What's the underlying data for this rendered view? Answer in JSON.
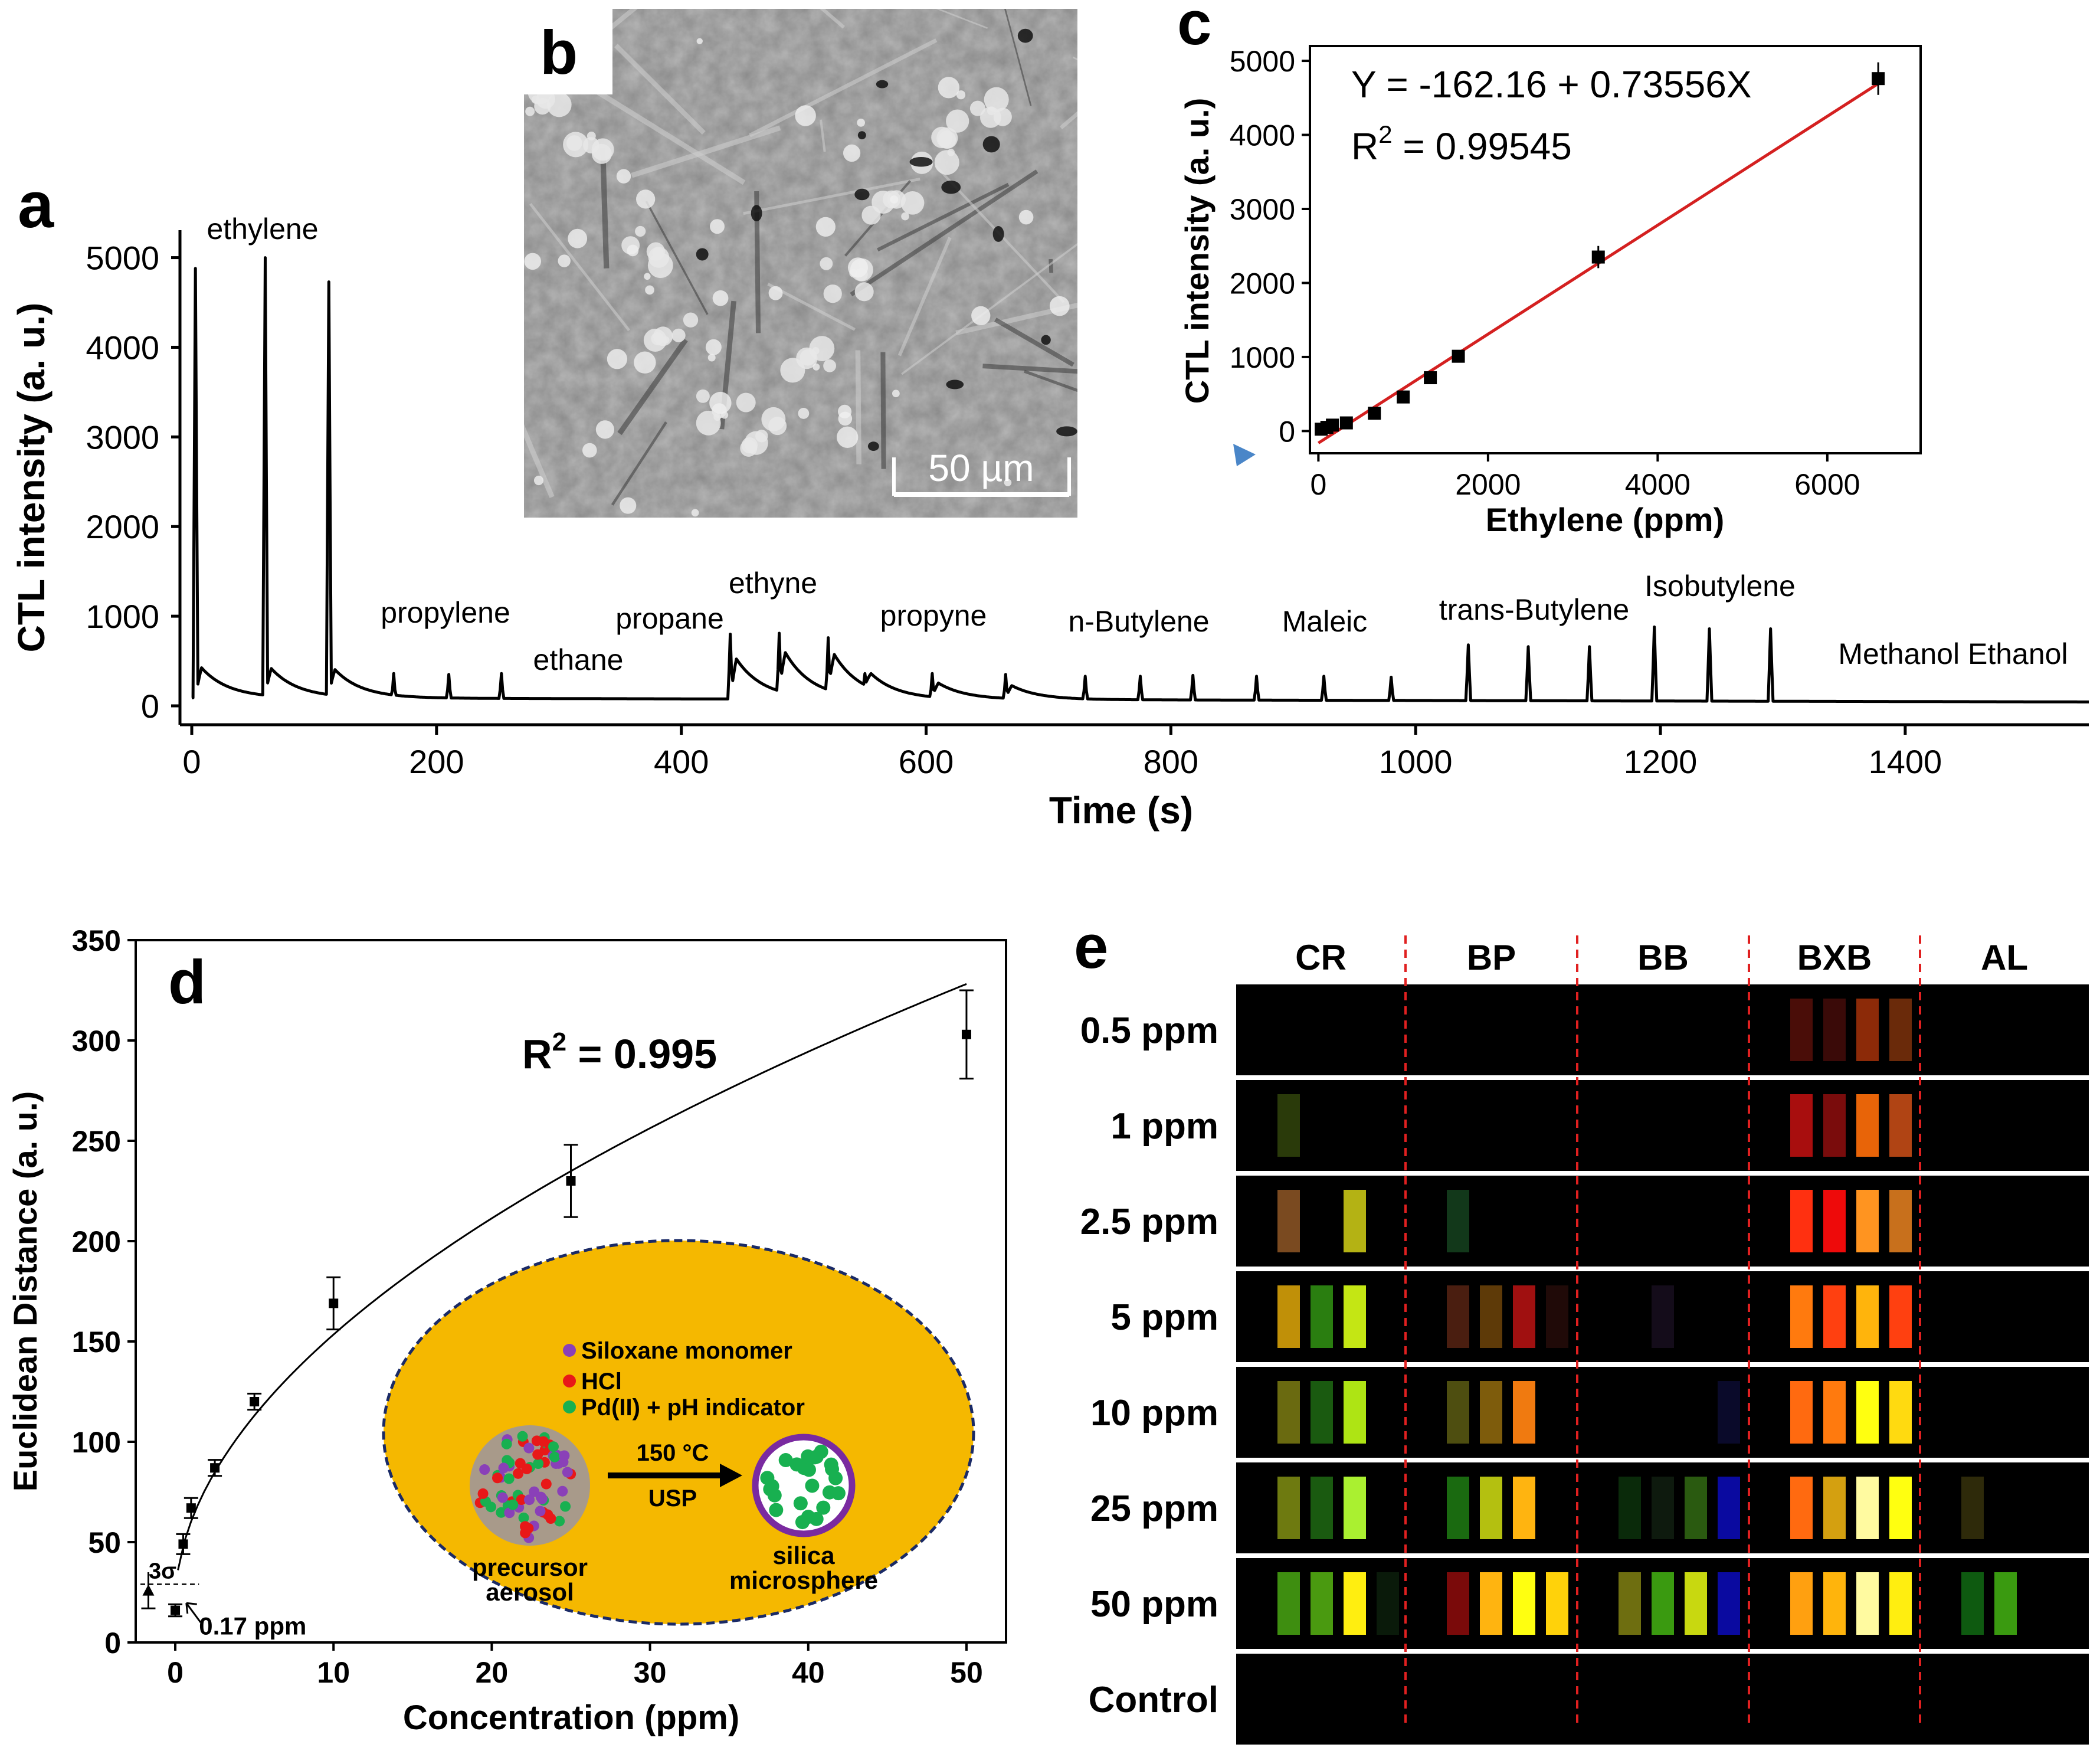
{
  "panel_labels": {
    "a": "a",
    "b": "b",
    "c": "c",
    "d": "d",
    "e": "e"
  },
  "panel_a": {
    "ylabel": "CTL intensity (a. u.)",
    "xlabel": "Time (s)",
    "yticks": [
      "0",
      "1000",
      "2000",
      "3000",
      "4000",
      "5000"
    ],
    "xticks": [
      "0",
      "200",
      "400",
      "600",
      "800",
      "1000",
      "1200",
      "1400"
    ],
    "annotations": [
      "ethylene",
      "propylene",
      "ethane",
      "propane",
      "ethyne",
      "propyne",
      "n-Butylene",
      "Maleic",
      "trans-Butylene",
      "Isobutylene",
      "Methanol Ethanol"
    ]
  },
  "panel_b": {
    "scale_bar": "50 µm"
  },
  "panel_c": {
    "equation": "Y = -162.16 + 0.73556X",
    "r2_prefix": "R",
    "r2_sup": "2",
    "r2_value": " = 0.99545",
    "ylabel": "CTL intensity (a. u.)",
    "xlabel": "Ethylene (ppm)",
    "yticks": [
      "0",
      "1000",
      "2000",
      "3000",
      "4000",
      "5000"
    ],
    "xticks": [
      "0",
      "2000",
      "4000",
      "6000"
    ]
  },
  "panel_d": {
    "r2_prefix": "R",
    "r2_sup": "2",
    "r2_value": " = 0.995",
    "ylabel": "Euclidean Distance (a. u.)",
    "xlabel": "Concentration (ppm)",
    "yticks": [
      "0",
      "50",
      "100",
      "150",
      "200",
      "250",
      "300",
      "350"
    ],
    "xticks": [
      "0",
      "10",
      "20",
      "30",
      "40",
      "50"
    ],
    "sigma_label": "3σ",
    "lod_label": "0.17 ppm",
    "inset": {
      "legend": [
        "Siloxane monomer",
        "HCl",
        "Pd(II) + pH indicator"
      ],
      "condition_top": "150 °C",
      "condition_bottom": "USP",
      "left_label_1": "precursor",
      "left_label_2": "aerosol",
      "right_label_1": "silica",
      "right_label_2": "microsphere"
    }
  },
  "panel_e": {
    "columns": [
      "CR",
      "BP",
      "BB",
      "BXB",
      "AL"
    ],
    "rows": [
      "0.5 ppm",
      "1 ppm",
      "2.5 ppm",
      "5 ppm",
      "10 ppm",
      "25 ppm",
      "50 ppm",
      "Control"
    ]
  },
  "colors": {
    "fit_line_c": "#d42020",
    "inset_fill": "#f5b800",
    "inset_border": "#1a2a66",
    "divider": "#e02020"
  },
  "chart_data": [
    {
      "type": "line",
      "panel": "a",
      "xlabel": "Time (s)",
      "ylabel": "CTL intensity (a. u.)",
      "xlim": [
        0,
        1550
      ],
      "ylim": [
        0,
        5300
      ],
      "series": [
        {
          "values": [
            [
              0,
              100
            ],
            [
              3,
              4880
            ],
            [
              8,
              520
            ],
            [
              58,
              100
            ],
            [
              60,
              5000
            ],
            [
              63,
              500
            ],
            [
              110,
              100
            ],
            [
              112,
              4730
            ],
            [
              115,
              480
            ],
            [
              165,
              380
            ],
            [
              210,
              360
            ],
            [
              253,
              370
            ],
            [
              440,
              800
            ],
            [
              480,
              810
            ],
            [
              520,
              760
            ],
            [
              550,
              360
            ],
            [
              605,
              380
            ],
            [
              665,
              360
            ],
            [
              730,
              330
            ],
            [
              775,
              330
            ],
            [
              818,
              340
            ],
            [
              870,
              340
            ],
            [
              925,
              340
            ],
            [
              980,
              330
            ],
            [
              1043,
              680
            ],
            [
              1092,
              660
            ],
            [
              1142,
              660
            ],
            [
              1195,
              880
            ],
            [
              1240,
              860
            ],
            [
              1290,
              860
            ],
            [
              1550,
              10
            ]
          ]
        }
      ]
    },
    {
      "type": "scatter",
      "panel": "c",
      "xlabel": "Ethylene (ppm)",
      "ylabel": "CTL intensity (a. u.)",
      "xlim": [
        -100,
        7100
      ],
      "ylim": [
        -300,
        5200
      ],
      "x": [
        33,
        100,
        165,
        330,
        660,
        1000,
        1320,
        1650,
        3300,
        6600
      ],
      "y": [
        25,
        50,
        80,
        110,
        240,
        460,
        720,
        1010,
        2350,
        4760
      ],
      "error": [
        20,
        20,
        20,
        25,
        40,
        50,
        60,
        60,
        150,
        220
      ],
      "fit": {
        "intercept": -162.16,
        "slope": 0.73556
      }
    },
    {
      "type": "scatter",
      "panel": "d",
      "xlabel": "Concentration (ppm)",
      "ylabel": "Euclidean Distance (a. u.)",
      "xlim": [
        -2.5,
        52.5
      ],
      "ylim": [
        0,
        350
      ],
      "x": [
        0,
        0.5,
        1,
        2.5,
        5,
        10,
        25,
        50
      ],
      "y": [
        16,
        49,
        67,
        87,
        120,
        169,
        230,
        303
      ],
      "error": [
        3,
        5,
        5,
        4,
        4,
        13,
        18,
        22
      ],
      "baseline": {
        "x": -1.7,
        "y": 26,
        "error": 9
      }
    },
    {
      "type": "heatmap",
      "panel": "e",
      "columns": [
        "CR",
        "BP",
        "BB",
        "BXB",
        "AL"
      ],
      "rows": [
        "0.5 ppm",
        "1 ppm",
        "2.5 ppm",
        "5 ppm",
        "10 ppm",
        "25 ppm",
        "50 ppm",
        "Control"
      ],
      "cells": [
        [
          [],
          [],
          [],
          [
            "#4a0d08",
            "#3a0a08",
            "#8c2a08",
            "#6a2a0a"
          ],
          []
        ],
        [
          [
            "#2a3a0a"
          ],
          [],
          [],
          [
            "#a80e0e",
            "#7a0c0c",
            "#e86408",
            "#b04414"
          ],
          []
        ],
        [
          [
            "#7a4a20",
            null,
            "#b4b214"
          ],
          [
            "#12381a"
          ],
          [],
          [
            "#ff3010",
            "#ee0a0a",
            "#ff9420",
            "#c8701c"
          ],
          []
        ],
        [
          [
            "#c09008",
            "#2a7e10",
            "#c4e614"
          ],
          [
            "#4a1e10",
            "#5e3a08",
            "#a01010",
            "#200a08"
          ],
          [
            null,
            "#140c1a"
          ],
          [
            "#ff7a0e",
            "#ff4010",
            "#ffb40c",
            "#ff4010"
          ],
          []
        ],
        [
          [
            "#6a6a10",
            "#1a5a10",
            "#aee414"
          ],
          [
            "#4e4e10",
            "#7e5c0c",
            "#f07a10"
          ],
          [
            null,
            null,
            null,
            "#0a0a2a"
          ],
          [
            "#ff6a10",
            "#ff7a0e",
            "#ffff10",
            "#ffda10"
          ],
          []
        ],
        [
          [
            "#6e7a10",
            "#1a5a10",
            "#aaf030"
          ],
          [
            "#1a6a10",
            "#b4c010",
            "#ffb410"
          ],
          [
            "#0a2a0a",
            "#0e1a0e",
            "#2a5a10",
            "#0a0aa0"
          ],
          [
            "#ff6a10",
            "#d4a010",
            "#fffaa0",
            "#ffff10"
          ],
          [
            "#2e2a0a"
          ]
        ],
        [
          [
            "#3e8e10",
            "#4a9a10",
            "#ffee10",
            "#0a1a0a"
          ],
          [
            "#7a0a0a",
            "#ffb410",
            "#ffff10",
            "#ffd20a"
          ],
          [
            "#6e6e10",
            "#3a9a10",
            "#c8d810",
            "#0a0aa0"
          ],
          [
            "#ffa010",
            "#ffb40c",
            "#fffaa0",
            "#ffee10"
          ],
          [
            "#0e5a10",
            "#3a9a10"
          ]
        ],
        [
          [],
          [],
          [],
          [],
          []
        ]
      ]
    }
  ]
}
